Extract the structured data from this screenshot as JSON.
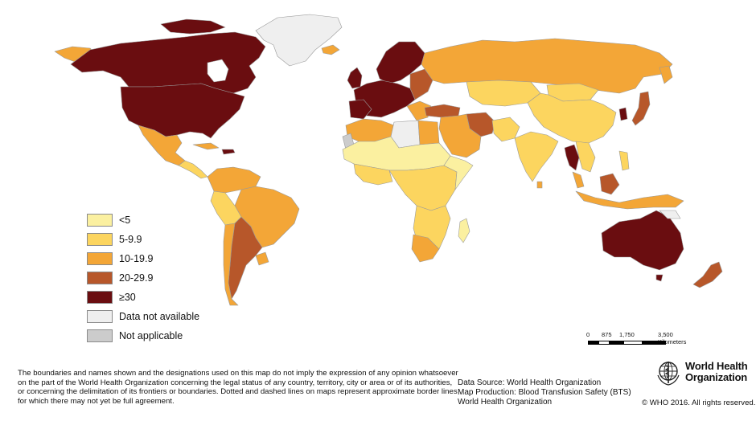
{
  "colors": {
    "lt5": "#fbf0a0",
    "c5_9": "#fcd55f",
    "c10_19": "#f3a637",
    "c20_29": "#b7572a",
    "ge30": "#6a0d10",
    "no_data": "#efefef",
    "not_applicable": "#cccccc",
    "ocean": "#ffffff",
    "border": "#9a9a9a"
  },
  "legend": {
    "items": [
      {
        "label": "<5",
        "color_key": "lt5"
      },
      {
        "label": "5-9.9",
        "color_key": "c5_9"
      },
      {
        "label": "10-19.9",
        "color_key": "c10_19"
      },
      {
        "label": "20-29.9",
        "color_key": "c20_29"
      },
      {
        "label": "≥30",
        "color_key": "ge30"
      },
      {
        "label": "Data not available",
        "color_key": "no_data"
      },
      {
        "label": "Not applicable",
        "color_key": "not_applicable"
      }
    ]
  },
  "scale": {
    "ticks": [
      "0",
      "875",
      "1,750",
      "3,500 Kilometers"
    ]
  },
  "disclaimer": {
    "lines": [
      "The boundaries and names shown and the designations used on this map do not imply the expression of any opinion whatsoever",
      "on the part of the World Health Organization concerning the legal status of any country, territory, city or area or of its authorities,",
      "or concerning the delimitation of its frontiers or boundaries. Dotted and dashed lines on maps represent approximate border lines",
      "for which there may not yet be full agreement."
    ]
  },
  "credits": {
    "lines": [
      "Data Source: World Health Organization",
      "Map Production: Blood Transfusion Safety (BTS)",
      "World Health Organization"
    ]
  },
  "who": {
    "name_line1": "World Health",
    "name_line2": "Organization",
    "logo_icon": "who-emblem-icon",
    "copyright": "© WHO 2016. All rights reserved."
  }
}
